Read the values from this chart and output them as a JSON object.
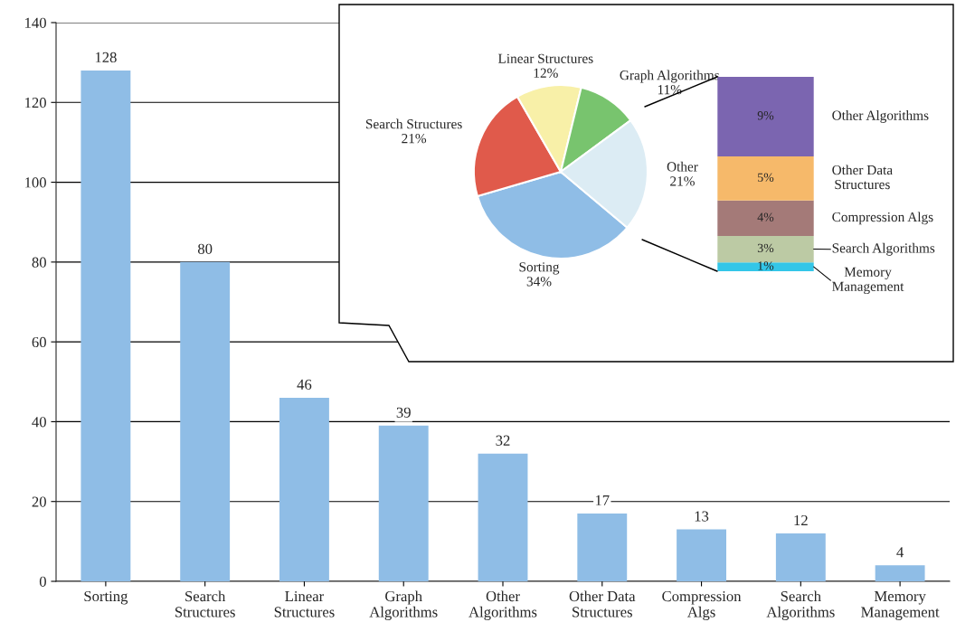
{
  "chart_data": [
    {
      "type": "bar",
      "categories": [
        "Sorting",
        "Search\nStructures",
        "Linear\nStructures",
        "Graph\nAlgorithms",
        "Other\nAlgorithms",
        "Other Data\nStructures",
        "Compression\nAlgs",
        "Search\nAlgorithms",
        "Memory\nManagement"
      ],
      "values": [
        128,
        80,
        46,
        39,
        32,
        17,
        13,
        12,
        4
      ],
      "color": "#8fbde6",
      "ylim": [
        0,
        140
      ],
      "yticks": [
        0,
        20,
        40,
        60,
        80,
        100,
        120,
        140
      ],
      "grid": "y",
      "data_labels": true
    },
    {
      "type": "pie",
      "categories": [
        "Sorting",
        "Search Structures",
        "Linear Structures",
        "Graph Algorithms",
        "Other"
      ],
      "values": [
        34,
        21,
        12,
        11,
        21
      ],
      "value_labels": [
        "34%",
        "21%",
        "12%",
        "11%",
        "21%"
      ],
      "colors": [
        "#8fbde6",
        "#e05a4b",
        "#f8f0a8",
        "#78c46e",
        "#dcecf4"
      ]
    },
    {
      "type": "bar",
      "stacked": true,
      "categories": [
        null
      ],
      "series": [
        {
          "name": "Memory\nManagement",
          "color": "#33c6e8",
          "values": [
            1
          ],
          "value_labels": [
            "1%"
          ]
        },
        {
          "name": "Search Algorithms",
          "color": "#bccaa4",
          "values": [
            3
          ],
          "value_labels": [
            "3%"
          ]
        },
        {
          "name": "Compression Algs",
          "color": "#a47a78",
          "values": [
            4
          ],
          "value_labels": [
            "4%"
          ]
        },
        {
          "name": "Other Data\nStructures",
          "color": "#f6b96a",
          "values": [
            5
          ],
          "value_labels": [
            "5%"
          ]
        },
        {
          "name": "Other Algorithms",
          "color": "#7b65b0",
          "values": [
            9
          ],
          "value_labels": [
            "9%"
          ]
        }
      ]
    }
  ]
}
